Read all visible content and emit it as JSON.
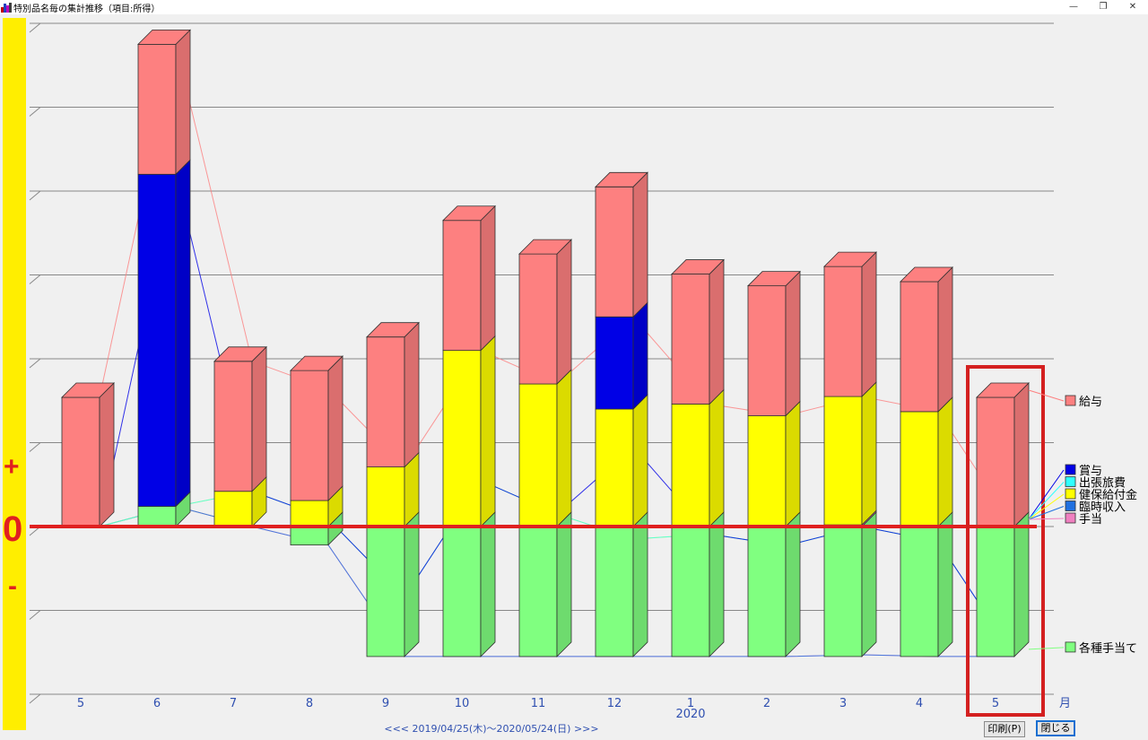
{
  "window": {
    "title": "特別品名毎の集計推移（項目:所得）",
    "minimize_glyph": "—",
    "restore_glyph": "❐",
    "close_glyph": "✕"
  },
  "buttons": {
    "print_label": "印刷(P)",
    "close_label": "閉じる"
  },
  "colors": {
    "salary": "#fd8080",
    "bonus": "#0000e6",
    "travel": "#30ffff",
    "health": "#ffff00",
    "temp": "#2070e0",
    "allowance": "#f080c0",
    "various": "#80ff80",
    "axis_band": "#ffee00",
    "zero_line": "#e02020",
    "highlight": "#d42020",
    "labels": "#3050b0"
  },
  "chart_data": {
    "type": "bar",
    "stacked": true,
    "categories": [
      "5",
      "6",
      "7",
      "8",
      "9",
      "10",
      "11",
      "12",
      "1",
      "2",
      "3",
      "4",
      "5"
    ],
    "year_label": "2020",
    "year_label_under": "1",
    "x_unit": "月",
    "grid": true,
    "series": [
      {
        "name": "各種手当て",
        "color_key": "various",
        "values": [
          0,
          0.24,
          0,
          -0.22,
          -1.55,
          -1.55,
          -1.55,
          -1.55,
          -1.55,
          -1.55,
          -1.55,
          -1.55,
          -1.55
        ]
      },
      {
        "name": "手当",
        "color_key": "allowance",
        "values": [
          0,
          0,
          0,
          0,
          0,
          0,
          0,
          0,
          0,
          0,
          0.02,
          0,
          0
        ]
      },
      {
        "name": "臨時収入",
        "color_key": "temp",
        "values": [
          0,
          0,
          0,
          0,
          0,
          0,
          0,
          0,
          0,
          0,
          0,
          0,
          0
        ]
      },
      {
        "name": "健保給付金",
        "color_key": "health",
        "values": [
          0,
          0,
          0.42,
          0.31,
          0.71,
          2.1,
          1.7,
          1.4,
          1.46,
          1.32,
          1.53,
          1.37,
          0
        ]
      },
      {
        "name": "出張旅費",
        "color_key": "travel",
        "values": [
          0,
          0,
          0,
          0,
          0,
          0,
          0,
          0,
          0,
          0,
          0,
          0,
          0
        ]
      },
      {
        "name": "賞与",
        "color_key": "bonus",
        "values": [
          0,
          3.96,
          0,
          0,
          0,
          0,
          0,
          1.1,
          0,
          0,
          0,
          0,
          0
        ]
      },
      {
        "name": "給与",
        "color_key": "salary",
        "values": [
          1.54,
          1.55,
          1.55,
          1.55,
          1.55,
          1.55,
          1.55,
          1.55,
          1.55,
          1.55,
          1.55,
          1.55,
          1.54
        ]
      }
    ],
    "legend_upper_order": [
      "賞与",
      "出張旅費",
      "健保給付金",
      "臨時収入",
      "手当"
    ],
    "range_text": "<<< 2019/04/25(木)～2020/05/24(日) >>>",
    "axis_plus": "+",
    "axis_minus": "-",
    "axis_zero": "0",
    "highlighted_category_index": 12,
    "ylim": [
      -2.0,
      6.25
    ]
  }
}
